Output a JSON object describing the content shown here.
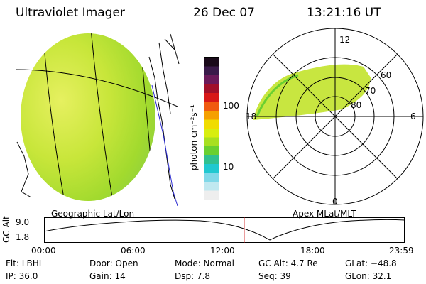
{
  "header": {
    "instrument": "Ultraviolet Imager",
    "date": "26 Dec 07",
    "time": "13:21:16 UT"
  },
  "colorbar": {
    "unit_label": "photon cm⁻²s⁻¹",
    "ticks": [
      "100",
      "10"
    ],
    "colors": [
      "#1a0a1a",
      "#3a1a4a",
      "#6a1a5a",
      "#a0102a",
      "#d81818",
      "#f05a10",
      "#f5a000",
      "#f0dc00",
      "#d8ee10",
      "#a8e020",
      "#6ad030",
      "#30c090",
      "#20c8d0",
      "#80d8e8",
      "#c0e8f0",
      "#eeeeee"
    ]
  },
  "geo_panel": {
    "label": "Geographic Lat/Lon"
  },
  "polar_panel": {
    "label": "Apex MLat/MLT",
    "mlt_labels": {
      "top": "12",
      "left": "18",
      "right": "6",
      "bottom": "0"
    },
    "lat_labels": [
      "60",
      "70",
      "80"
    ]
  },
  "altitude_plot": {
    "ylabel": "GC Alt",
    "y_ticks": [
      "9.0",
      "1.8"
    ],
    "x_ticks": [
      "00:00",
      "06:00",
      "12:00",
      "18:00",
      "23:59"
    ],
    "current_time_fraction": 0.555
  },
  "info": {
    "flt": "Flt: LBHL",
    "ip": "IP: 36.0",
    "door": "Door: Open",
    "gain": "Gain: 14",
    "mode": "Mode: Normal",
    "dsp": "Dsp:    7.8",
    "gcalt": "GC Alt: 4.7 Re",
    "seq": "Seq: 39",
    "glat": "GLat: −48.8",
    "glon": "GLon:  32.1"
  }
}
